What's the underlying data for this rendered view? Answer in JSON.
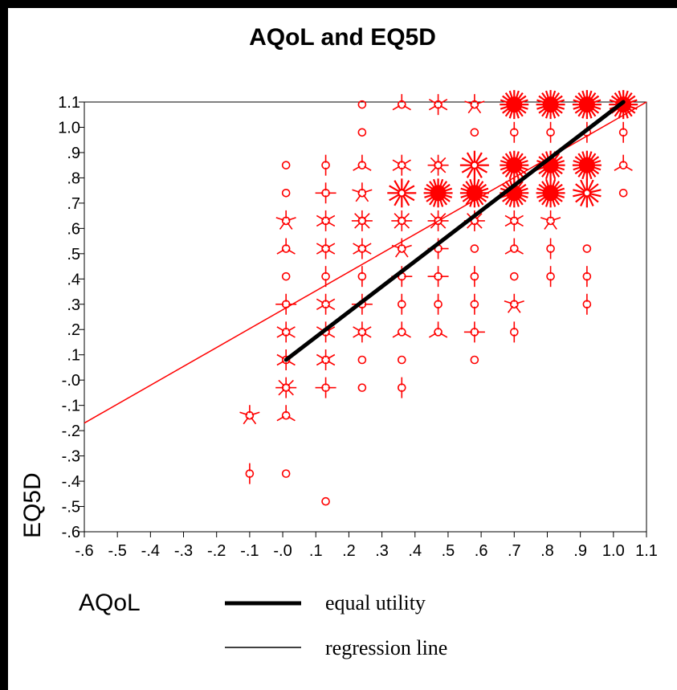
{
  "chart_data": {
    "type": "scatter",
    "title": "AQoL and EQ5D",
    "xlabel": "AQoL",
    "ylabel": "EQ5D",
    "xlim": [
      -0.6,
      1.1
    ],
    "ylim": [
      -0.6,
      1.1
    ],
    "x_tick_labels": [
      "-.6",
      "-.5",
      "-.4",
      "-.3",
      "-.2",
      "-.1",
      "-.0",
      ".1",
      ".2",
      ".3",
      ".4",
      ".5",
      ".6",
      ".7",
      ".8",
      ".9",
      "1.0",
      "1.1"
    ],
    "y_tick_labels": [
      "-.6",
      "-.5",
      "-.4",
      "-.3",
      "-.2",
      "-.1",
      "-.0",
      ".1",
      ".2",
      ".3",
      ".4",
      ".5",
      ".6",
      ".7",
      ".8",
      ".9",
      "1.0",
      "1.1"
    ],
    "point_color": "#ff0000",
    "marker_style": "sunflower",
    "points": [
      {
        "x": 0.24,
        "y": 1.09,
        "count": 1
      },
      {
        "x": 0.36,
        "y": 1.09,
        "count": 3
      },
      {
        "x": 0.47,
        "y": 1.09,
        "count": 6
      },
      {
        "x": 0.58,
        "y": 1.09,
        "count": 5
      },
      {
        "x": 0.7,
        "y": 1.09,
        "count": 20
      },
      {
        "x": 0.81,
        "y": 1.09,
        "count": 20
      },
      {
        "x": 0.92,
        "y": 1.09,
        "count": 20
      },
      {
        "x": 1.03,
        "y": 1.09,
        "count": 20
      },
      {
        "x": 0.24,
        "y": 0.98,
        "count": 1
      },
      {
        "x": 0.58,
        "y": 0.98,
        "count": 1
      },
      {
        "x": 0.7,
        "y": 0.98,
        "count": 2
      },
      {
        "x": 0.81,
        "y": 0.98,
        "count": 2
      },
      {
        "x": 0.92,
        "y": 0.98,
        "count": 2
      },
      {
        "x": 1.03,
        "y": 0.98,
        "count": 2
      },
      {
        "x": 0.01,
        "y": 0.85,
        "count": 1
      },
      {
        "x": 0.13,
        "y": 0.85,
        "count": 2
      },
      {
        "x": 0.24,
        "y": 0.85,
        "count": 3
      },
      {
        "x": 0.36,
        "y": 0.85,
        "count": 6
      },
      {
        "x": 0.47,
        "y": 0.85,
        "count": 8
      },
      {
        "x": 0.58,
        "y": 0.85,
        "count": 12
      },
      {
        "x": 0.7,
        "y": 0.85,
        "count": 20
      },
      {
        "x": 0.81,
        "y": 0.85,
        "count": 20
      },
      {
        "x": 0.92,
        "y": 0.85,
        "count": 20
      },
      {
        "x": 1.03,
        "y": 0.85,
        "count": 3
      },
      {
        "x": 0.01,
        "y": 0.74,
        "count": 1
      },
      {
        "x": 0.13,
        "y": 0.74,
        "count": 4
      },
      {
        "x": 0.24,
        "y": 0.74,
        "count": 5
      },
      {
        "x": 0.36,
        "y": 0.74,
        "count": 12
      },
      {
        "x": 0.47,
        "y": 0.74,
        "count": 20
      },
      {
        "x": 0.58,
        "y": 0.74,
        "count": 20
      },
      {
        "x": 0.7,
        "y": 0.74,
        "count": 20
      },
      {
        "x": 0.81,
        "y": 0.74,
        "count": 20
      },
      {
        "x": 0.92,
        "y": 0.74,
        "count": 14
      },
      {
        "x": 1.03,
        "y": 0.74,
        "count": 1
      },
      {
        "x": 0.01,
        "y": 0.63,
        "count": 5
      },
      {
        "x": 0.13,
        "y": 0.63,
        "count": 6
      },
      {
        "x": 0.24,
        "y": 0.63,
        "count": 8
      },
      {
        "x": 0.36,
        "y": 0.63,
        "count": 8
      },
      {
        "x": 0.47,
        "y": 0.63,
        "count": 8
      },
      {
        "x": 0.58,
        "y": 0.63,
        "count": 8
      },
      {
        "x": 0.7,
        "y": 0.63,
        "count": 6
      },
      {
        "x": 0.81,
        "y": 0.63,
        "count": 5
      },
      {
        "x": 0.01,
        "y": 0.52,
        "count": 3
      },
      {
        "x": 0.13,
        "y": 0.52,
        "count": 6
      },
      {
        "x": 0.24,
        "y": 0.52,
        "count": 6
      },
      {
        "x": 0.36,
        "y": 0.52,
        "count": 5
      },
      {
        "x": 0.47,
        "y": 0.52,
        "count": 4
      },
      {
        "x": 0.58,
        "y": 0.52,
        "count": 1
      },
      {
        "x": 0.7,
        "y": 0.52,
        "count": 3
      },
      {
        "x": 0.81,
        "y": 0.52,
        "count": 2
      },
      {
        "x": 0.92,
        "y": 0.52,
        "count": 1
      },
      {
        "x": 0.01,
        "y": 0.41,
        "count": 1
      },
      {
        "x": 0.13,
        "y": 0.41,
        "count": 2
      },
      {
        "x": 0.24,
        "y": 0.41,
        "count": 2
      },
      {
        "x": 0.36,
        "y": 0.41,
        "count": 4
      },
      {
        "x": 0.47,
        "y": 0.41,
        "count": 4
      },
      {
        "x": 0.58,
        "y": 0.41,
        "count": 2
      },
      {
        "x": 0.7,
        "y": 0.41,
        "count": 1
      },
      {
        "x": 0.81,
        "y": 0.41,
        "count": 2
      },
      {
        "x": 0.92,
        "y": 0.41,
        "count": 2
      },
      {
        "x": 0.01,
        "y": 0.3,
        "count": 4
      },
      {
        "x": 0.13,
        "y": 0.3,
        "count": 6
      },
      {
        "x": 0.24,
        "y": 0.3,
        "count": 4
      },
      {
        "x": 0.36,
        "y": 0.3,
        "count": 2
      },
      {
        "x": 0.47,
        "y": 0.3,
        "count": 2
      },
      {
        "x": 0.58,
        "y": 0.3,
        "count": 2
      },
      {
        "x": 0.7,
        "y": 0.3,
        "count": 5
      },
      {
        "x": 0.92,
        "y": 0.3,
        "count": 2
      },
      {
        "x": 0.01,
        "y": 0.19,
        "count": 6
      },
      {
        "x": 0.13,
        "y": 0.19,
        "count": 6
      },
      {
        "x": 0.24,
        "y": 0.19,
        "count": 6
      },
      {
        "x": 0.36,
        "y": 0.19,
        "count": 3
      },
      {
        "x": 0.47,
        "y": 0.19,
        "count": 3
      },
      {
        "x": 0.58,
        "y": 0.19,
        "count": 4
      },
      {
        "x": 0.7,
        "y": 0.19,
        "count": 2
      },
      {
        "x": 0.01,
        "y": 0.08,
        "count": 6
      },
      {
        "x": 0.13,
        "y": 0.08,
        "count": 6
      },
      {
        "x": 0.24,
        "y": 0.08,
        "count": 1
      },
      {
        "x": 0.36,
        "y": 0.08,
        "count": 1
      },
      {
        "x": 0.58,
        "y": 0.08,
        "count": 1
      },
      {
        "x": 0.01,
        "y": -0.03,
        "count": 8
      },
      {
        "x": 0.13,
        "y": -0.03,
        "count": 4
      },
      {
        "x": 0.24,
        "y": -0.03,
        "count": 1
      },
      {
        "x": 0.36,
        "y": -0.03,
        "count": 2
      },
      {
        "x": -0.1,
        "y": -0.14,
        "count": 5
      },
      {
        "x": 0.01,
        "y": -0.14,
        "count": 3
      },
      {
        "x": -0.1,
        "y": -0.37,
        "count": 2
      },
      {
        "x": 0.01,
        "y": -0.37,
        "count": 1
      },
      {
        "x": 0.13,
        "y": -0.48,
        "count": 1
      }
    ],
    "equal_utility_line": {
      "x": [
        0.01,
        1.03
      ],
      "y": [
        0.08,
        1.1
      ],
      "color": "#000000"
    },
    "regression_line": {
      "x": [
        -0.6,
        1.1
      ],
      "y": [
        -0.17,
        1.1
      ],
      "color": "#ff0000"
    },
    "legend": [
      {
        "label": "equal utility",
        "style": "thick",
        "color": "#000000"
      },
      {
        "label": "regression line",
        "style": "thin",
        "color": "#000000"
      }
    ],
    "legend_position": "bottom"
  }
}
